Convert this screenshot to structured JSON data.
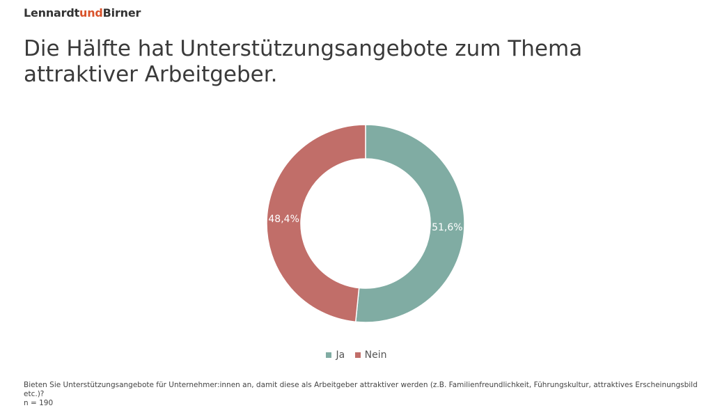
{
  "brand": {
    "part1": "Lennardt",
    "part2": "und",
    "part3": "Birner",
    "accent_color": "#d9532b"
  },
  "title": "Die Hälfte hat Unterstützungsangebote zum Thema attraktiver Arbeitgeber.",
  "chart_data": {
    "type": "pie",
    "donut": true,
    "categories": [
      "Ja",
      "Nein"
    ],
    "values": [
      51.6,
      48.4
    ],
    "labels": [
      "51,6%",
      "48,4%"
    ],
    "colors": [
      "#80aca3",
      "#c16e69"
    ],
    "legend_position": "bottom"
  },
  "footnote": {
    "question": "Bieten Sie Unterstützungsangebote für Unternehmer:innen an, damit diese als Arbeitgeber attraktiver werden (z.B. Familienfreundlichkeit, Führungskultur, attraktives Erscheinungsbild etc.)?",
    "n": "n = 190"
  }
}
